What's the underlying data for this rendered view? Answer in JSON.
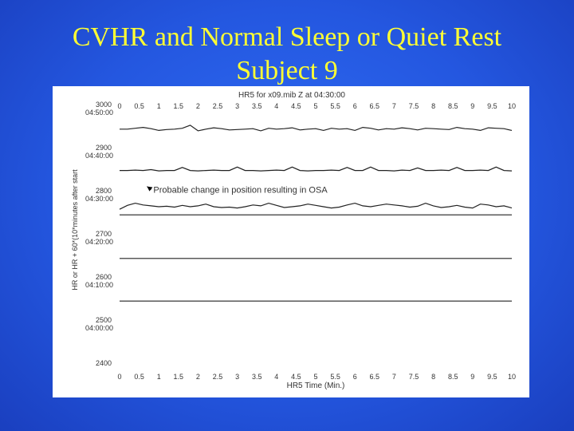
{
  "slide": {
    "title_line1": "CVHR and Normal Sleep or Quiet Rest",
    "title_line2": "Subject 9"
  },
  "colors": {
    "background": "#2457e0",
    "title": "#ffff33",
    "trace": "#222222"
  },
  "chart_data": {
    "type": "line",
    "title": "HR5 for x09.mib Z at 04:30:00",
    "xlabel": "HR5 Time (Min.)",
    "ylabel": "HR or HR + 60*(10*minutes after start",
    "xlim": [
      0,
      10
    ],
    "ylim": [
      2400,
      3000
    ],
    "x_ticks_top": [
      "0",
      "0.5",
      "1",
      "1.5",
      "2",
      "2.5",
      "3",
      "3.5",
      "4",
      "4.5",
      "5",
      "5.5",
      "6",
      "6.5",
      "7",
      "7.5",
      "8",
      "8.5",
      "9",
      "9.5",
      "10"
    ],
    "x_ticks_bottom": [
      "0",
      "0.5",
      "1",
      "1.5",
      "2",
      "2.5",
      "3",
      "3.5",
      "4",
      "4.5",
      "5",
      "5.5",
      "6",
      "6.5",
      "7",
      "7.5",
      "8",
      "8.5",
      "9",
      "9.5",
      "10"
    ],
    "y_ticks": [
      {
        "value": 3000,
        "label": "3000",
        "time": "04:50:00"
      },
      {
        "value": 2900,
        "label": "2900",
        "time": "04:40:00"
      },
      {
        "value": 2800,
        "label": "2800",
        "time": "04:30:00"
      },
      {
        "value": 2700,
        "label": "2700",
        "time": "04:20:00"
      },
      {
        "value": 2600,
        "label": "2600",
        "time": "04:10:00"
      },
      {
        "value": 2500,
        "label": "2500",
        "time": "04:00:00"
      },
      {
        "value": 2400,
        "label": "2400",
        "time": ""
      }
    ],
    "series": [
      {
        "offset": 2956,
        "values": [
          0,
          0,
          2,
          4,
          1,
          -3,
          -1,
          0,
          2,
          9,
          -4,
          0,
          3,
          1,
          -2,
          -1,
          0,
          1,
          -4,
          2,
          0,
          1,
          3,
          -2,
          0,
          1,
          -3,
          2,
          0,
          1,
          -3,
          4,
          2,
          -2,
          1,
          0,
          3,
          1,
          -2,
          2,
          1,
          0,
          -1,
          4,
          1,
          0,
          -3,
          3,
          2,
          1,
          -3
        ]
      },
      {
        "offset": 2860,
        "values": [
          0,
          0,
          1,
          0,
          2,
          -1,
          0,
          0,
          7,
          0,
          -1,
          0,
          1,
          0,
          0,
          8,
          0,
          0,
          -1,
          0,
          1,
          0,
          8,
          0,
          -1,
          0,
          0,
          1,
          0,
          7,
          0,
          0,
          8,
          0,
          0,
          -1,
          1,
          0,
          6,
          0,
          0,
          1,
          0,
          7,
          0,
          0,
          1,
          0,
          8,
          0,
          -1
        ]
      },
      {
        "offset": 2770,
        "values": [
          0,
          9,
          14,
          10,
          8,
          6,
          7,
          5,
          9,
          6,
          8,
          12,
          6,
          4,
          5,
          3,
          6,
          10,
          8,
          14,
          9,
          4,
          6,
          8,
          12,
          9,
          6,
          3,
          5,
          10,
          14,
          8,
          6,
          9,
          12,
          10,
          8,
          5,
          7,
          14,
          8,
          4,
          6,
          9,
          5,
          3,
          12,
          10,
          6,
          8,
          3
        ]
      },
      {
        "offset": 2757,
        "values": [
          0,
          0,
          0,
          0,
          0,
          0,
          0,
          0,
          0,
          0,
          0,
          0,
          0,
          0,
          0,
          0,
          0,
          0,
          0,
          0,
          0,
          0,
          0,
          0,
          0,
          0,
          0,
          0,
          0,
          0,
          0,
          0,
          0,
          0,
          0,
          0,
          0,
          0,
          0,
          0,
          0,
          0,
          0,
          0,
          0,
          0,
          0,
          0,
          0,
          0,
          0
        ]
      },
      {
        "offset": 2656,
        "values": [
          0,
          0,
          0,
          0,
          0,
          0,
          0,
          0,
          0,
          0,
          0,
          0,
          0,
          0,
          0,
          0,
          0,
          0,
          0,
          0,
          0,
          0,
          0,
          0,
          0,
          0,
          0,
          0,
          0,
          0,
          0,
          0,
          0,
          0,
          0,
          0,
          0,
          0,
          0,
          0,
          0,
          0,
          0,
          0,
          0,
          0,
          0,
          0,
          0,
          0,
          0
        ]
      },
      {
        "offset": 2557,
        "values": [
          0,
          0,
          0,
          0,
          0,
          0,
          0,
          0,
          0,
          0,
          0,
          0,
          0,
          0,
          0,
          0,
          0,
          0,
          0,
          0,
          0,
          0,
          0,
          0,
          0,
          0,
          0,
          0,
          0,
          0,
          0,
          0,
          0,
          0,
          0,
          0,
          0,
          0,
          0,
          0,
          0,
          0,
          0,
          0,
          0,
          0,
          0,
          0,
          0,
          0,
          0
        ]
      }
    ],
    "annotations": [
      {
        "text": "Probable change in position resulting in OSA",
        "x": 0.8,
        "y": 2808,
        "arrow_to": {
          "x": 0.7,
          "y": 2823
        }
      }
    ],
    "grid": false,
    "legend": "none"
  }
}
